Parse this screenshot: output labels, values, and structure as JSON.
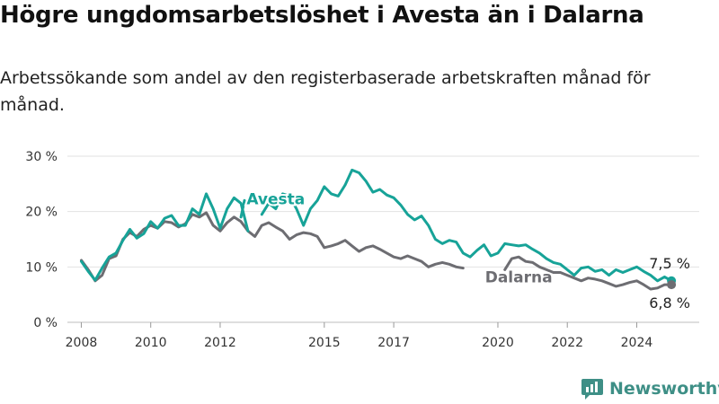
{
  "header": {
    "title": "Högre ungdomsarbetslöshet i Avesta än i Dalarna",
    "subtitle": "Arbetssökande som andel av den registerbaserade arbetskraften månad för månad."
  },
  "logo": {
    "text": "Newsworthy",
    "icon": "bar-chart-icon"
  },
  "chart_data": {
    "type": "line",
    "ylim": [
      0,
      30
    ],
    "xlim": [
      2007.6,
      2025.8
    ],
    "yticks": [
      {
        "value": 0,
        "label": "0 %"
      },
      {
        "value": 10,
        "label": "10 %"
      },
      {
        "value": 20,
        "label": "20 %"
      },
      {
        "value": 30,
        "label": "30 %"
      }
    ],
    "xticks": [
      {
        "value": 2008,
        "label": "2008"
      },
      {
        "value": 2010,
        "label": "2010"
      },
      {
        "value": 2012,
        "label": "2012"
      },
      {
        "value": 2015,
        "label": "2015"
      },
      {
        "value": 2017,
        "label": "2017"
      },
      {
        "value": 2020,
        "label": "2020"
      },
      {
        "value": 2022,
        "label": "2022"
      },
      {
        "value": 2024,
        "label": "2024"
      }
    ],
    "grid": true,
    "series": [
      {
        "name": "Avesta",
        "color": "#17a398",
        "end_label": "7,5 %",
        "segments": [
          [
            [
              2008.0,
              11.0
            ],
            [
              2008.2,
              9.2
            ],
            [
              2008.4,
              7.6
            ],
            [
              2008.6,
              9.8
            ],
            [
              2008.8,
              11.8
            ],
            [
              2009.0,
              12.5
            ],
            [
              2009.2,
              14.8
            ],
            [
              2009.4,
              16.8
            ],
            [
              2009.6,
              15.2
            ],
            [
              2009.8,
              16.0
            ],
            [
              2010.0,
              18.2
            ],
            [
              2010.2,
              17.0
            ],
            [
              2010.4,
              18.8
            ],
            [
              2010.6,
              19.3
            ],
            [
              2010.8,
              17.5
            ],
            [
              2011.0,
              17.5
            ],
            [
              2011.2,
              20.5
            ],
            [
              2011.4,
              19.5
            ],
            [
              2011.6,
              23.2
            ],
            [
              2011.8,
              20.5
            ],
            [
              2012.0,
              17.0
            ],
            [
              2012.2,
              20.5
            ],
            [
              2012.4,
              22.5
            ],
            [
              2012.6,
              21.5
            ],
            [
              2012.8,
              16.5
            ]
          ],
          [
            [
              2012.6,
              19.0
            ],
            [
              2012.7,
              22.0
            ]
          ],
          [
            [
              2013.2,
              19.5
            ],
            [
              2013.4,
              21.5
            ],
            [
              2013.6,
              20.5
            ],
            [
              2013.8,
              23.2
            ],
            [
              2014.0,
              22.8
            ],
            [
              2014.2,
              20.5
            ],
            [
              2014.4,
              17.5
            ],
            [
              2014.6,
              20.5
            ],
            [
              2014.8,
              22.0
            ],
            [
              2015.0,
              24.5
            ],
            [
              2015.2,
              23.2
            ],
            [
              2015.4,
              22.8
            ],
            [
              2015.6,
              24.8
            ],
            [
              2015.8,
              27.5
            ],
            [
              2016.0,
              27.0
            ],
            [
              2016.2,
              25.5
            ],
            [
              2016.4,
              23.5
            ],
            [
              2016.6,
              24.0
            ],
            [
              2016.8,
              23.0
            ],
            [
              2017.0,
              22.5
            ],
            [
              2017.2,
              21.2
            ],
            [
              2017.4,
              19.5
            ],
            [
              2017.6,
              18.5
            ],
            [
              2017.8,
              19.2
            ],
            [
              2018.0,
              17.5
            ],
            [
              2018.2,
              15.0
            ],
            [
              2018.4,
              14.2
            ],
            [
              2018.6,
              14.8
            ],
            [
              2018.8,
              14.5
            ],
            [
              2019.0,
              12.5
            ],
            [
              2019.2,
              11.8
            ],
            [
              2019.4,
              13.0
            ],
            [
              2019.6,
              14.0
            ],
            [
              2019.8,
              12.0
            ],
            [
              2020.0,
              12.5
            ],
            [
              2020.2,
              14.2
            ],
            [
              2020.4,
              14.0
            ],
            [
              2020.6,
              13.8
            ],
            [
              2020.8,
              14.0
            ],
            [
              2021.0,
              13.2
            ],
            [
              2021.2,
              12.5
            ],
            [
              2021.4,
              11.5
            ],
            [
              2021.6,
              10.8
            ],
            [
              2021.8,
              10.5
            ],
            [
              2022.0,
              9.5
            ],
            [
              2022.2,
              8.5
            ],
            [
              2022.4,
              9.8
            ],
            [
              2022.6,
              10.0
            ],
            [
              2022.8,
              9.2
            ],
            [
              2023.0,
              9.5
            ],
            [
              2023.2,
              8.5
            ],
            [
              2023.4,
              9.5
            ],
            [
              2023.6,
              9.0
            ],
            [
              2023.8,
              9.5
            ],
            [
              2024.0,
              10.0
            ],
            [
              2024.2,
              9.2
            ],
            [
              2024.4,
              8.5
            ],
            [
              2024.6,
              7.5
            ],
            [
              2024.8,
              8.2
            ],
            [
              2025.0,
              7.5
            ]
          ]
        ]
      },
      {
        "name": "Dalarna",
        "color": "#6d6d72",
        "end_label": "6,8 %",
        "segments": [
          [
            [
              2008.0,
              11.2
            ],
            [
              2008.2,
              9.5
            ],
            [
              2008.4,
              7.5
            ],
            [
              2008.6,
              8.5
            ],
            [
              2008.8,
              11.5
            ],
            [
              2009.0,
              12.0
            ],
            [
              2009.2,
              15.0
            ],
            [
              2009.4,
              16.2
            ],
            [
              2009.6,
              15.5
            ],
            [
              2009.8,
              16.8
            ],
            [
              2010.0,
              17.5
            ],
            [
              2010.2,
              17.0
            ],
            [
              2010.4,
              18.2
            ],
            [
              2010.6,
              18.0
            ],
            [
              2010.8,
              17.2
            ],
            [
              2011.0,
              17.8
            ],
            [
              2011.2,
              19.5
            ],
            [
              2011.4,
              19.0
            ],
            [
              2011.6,
              19.8
            ],
            [
              2011.8,
              17.5
            ],
            [
              2012.0,
              16.5
            ],
            [
              2012.2,
              18.0
            ],
            [
              2012.4,
              19.0
            ],
            [
              2012.6,
              18.2
            ],
            [
              2012.8,
              16.5
            ],
            [
              2013.0,
              15.5
            ],
            [
              2013.2,
              17.5
            ],
            [
              2013.4,
              18.0
            ],
            [
              2013.6,
              17.2
            ],
            [
              2013.8,
              16.5
            ],
            [
              2014.0,
              15.0
            ],
            [
              2014.2,
              15.8
            ],
            [
              2014.4,
              16.2
            ],
            [
              2014.6,
              16.0
            ],
            [
              2014.8,
              15.5
            ],
            [
              2015.0,
              13.5
            ],
            [
              2015.2,
              13.8
            ],
            [
              2015.4,
              14.2
            ],
            [
              2015.6,
              14.8
            ],
            [
              2015.8,
              13.8
            ],
            [
              2016.0,
              12.8
            ],
            [
              2016.2,
              13.5
            ],
            [
              2016.4,
              13.8
            ],
            [
              2016.6,
              13.2
            ],
            [
              2016.8,
              12.5
            ],
            [
              2017.0,
              11.8
            ],
            [
              2017.2,
              11.5
            ],
            [
              2017.4,
              12.0
            ],
            [
              2017.6,
              11.5
            ],
            [
              2017.8,
              11.0
            ],
            [
              2018.0,
              10.0
            ],
            [
              2018.2,
              10.5
            ],
            [
              2018.4,
              10.8
            ],
            [
              2018.6,
              10.5
            ],
            [
              2018.8,
              10.0
            ],
            [
              2019.0,
              9.8
            ]
          ],
          [
            [
              2020.2,
              9.5
            ],
            [
              2020.4,
              11.5
            ],
            [
              2020.6,
              11.8
            ],
            [
              2020.8,
              11.0
            ],
            [
              2021.0,
              10.8
            ],
            [
              2021.2,
              10.0
            ],
            [
              2021.4,
              9.5
            ],
            [
              2021.6,
              9.0
            ],
            [
              2021.8,
              9.0
            ],
            [
              2022.0,
              8.5
            ],
            [
              2022.2,
              8.0
            ],
            [
              2022.4,
              7.5
            ],
            [
              2022.6,
              8.0
            ],
            [
              2022.8,
              7.8
            ],
            [
              2023.0,
              7.5
            ],
            [
              2023.2,
              7.0
            ],
            [
              2023.4,
              6.5
            ],
            [
              2023.6,
              6.8
            ],
            [
              2023.8,
              7.2
            ],
            [
              2024.0,
              7.5
            ],
            [
              2024.2,
              6.8
            ],
            [
              2024.4,
              6.0
            ],
            [
              2024.6,
              6.2
            ],
            [
              2024.8,
              6.8
            ],
            [
              2025.0,
              6.8
            ]
          ]
        ]
      }
    ],
    "annotations": [
      {
        "text": "Avesta",
        "series": 0,
        "x": 2013.6,
        "y": 21.3
      },
      {
        "text": "Dalarna",
        "series": 1,
        "x": 2020.6,
        "y": 7.2
      }
    ]
  }
}
